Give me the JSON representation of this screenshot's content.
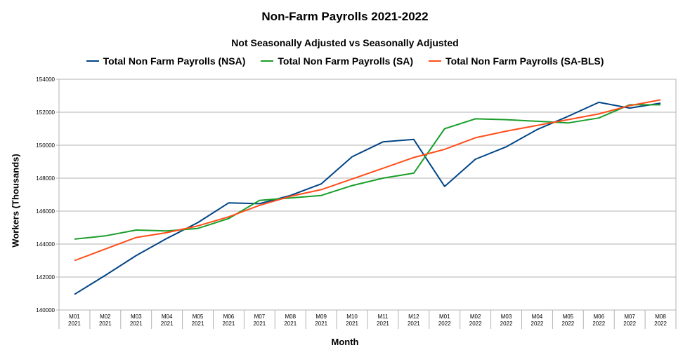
{
  "chart_data": {
    "type": "line",
    "title": "Non-Farm Payrolls 2021-2022",
    "subtitle": "Not Seasonally Adjusted vs Seasonally Adjusted",
    "xlabel": "Month",
    "ylabel": "Workers (Thousands)",
    "ylim": [
      140000,
      154000
    ],
    "yticks": [
      140000,
      142000,
      144000,
      146000,
      148000,
      150000,
      152000,
      154000
    ],
    "grid": true,
    "legend_position": "top",
    "categories": [
      [
        "M01",
        "2021"
      ],
      [
        "M02",
        "2021"
      ],
      [
        "M03",
        "2021"
      ],
      [
        "M04",
        "2021"
      ],
      [
        "M05",
        "2021"
      ],
      [
        "M06",
        "2021"
      ],
      [
        "M07",
        "2021"
      ],
      [
        "M08",
        "2021"
      ],
      [
        "M09",
        "2021"
      ],
      [
        "M10",
        "2021"
      ],
      [
        "M11",
        "2021"
      ],
      [
        "M12",
        "2021"
      ],
      [
        "M01",
        "2022"
      ],
      [
        "M02",
        "2022"
      ],
      [
        "M03",
        "2022"
      ],
      [
        "M04",
        "2022"
      ],
      [
        "M05",
        "2022"
      ],
      [
        "M06",
        "2022"
      ],
      [
        "M07",
        "2022"
      ],
      [
        "M08",
        "2022"
      ]
    ],
    "series": [
      {
        "name": "Total Non Farm Payrolls (NSA)",
        "color": "#004586",
        "values": [
          140950,
          142100,
          143300,
          144350,
          145300,
          146500,
          146450,
          146950,
          147650,
          149300,
          150200,
          150350,
          147500,
          149150,
          149900,
          150950,
          151750,
          152600,
          152250,
          152550
        ]
      },
      {
        "name": "Total Non Farm Payrolls (SA)",
        "color": "#1a9e2a",
        "values": [
          144300,
          144500,
          144850,
          144800,
          144950,
          145550,
          146650,
          146800,
          146950,
          147550,
          148000,
          148300,
          151000,
          151600,
          151550,
          151450,
          151350,
          151650,
          152450,
          152450
        ]
      },
      {
        "name": "Total Non Farm Payrolls (SA-BLS)",
        "color": "#ff4e1a",
        "values": [
          143000,
          143700,
          144400,
          144700,
          145100,
          145650,
          146350,
          146900,
          147300,
          147950,
          148600,
          149250,
          149750,
          150450,
          150850,
          151200,
          151550,
          151900,
          152400,
          152750
        ]
      }
    ]
  }
}
